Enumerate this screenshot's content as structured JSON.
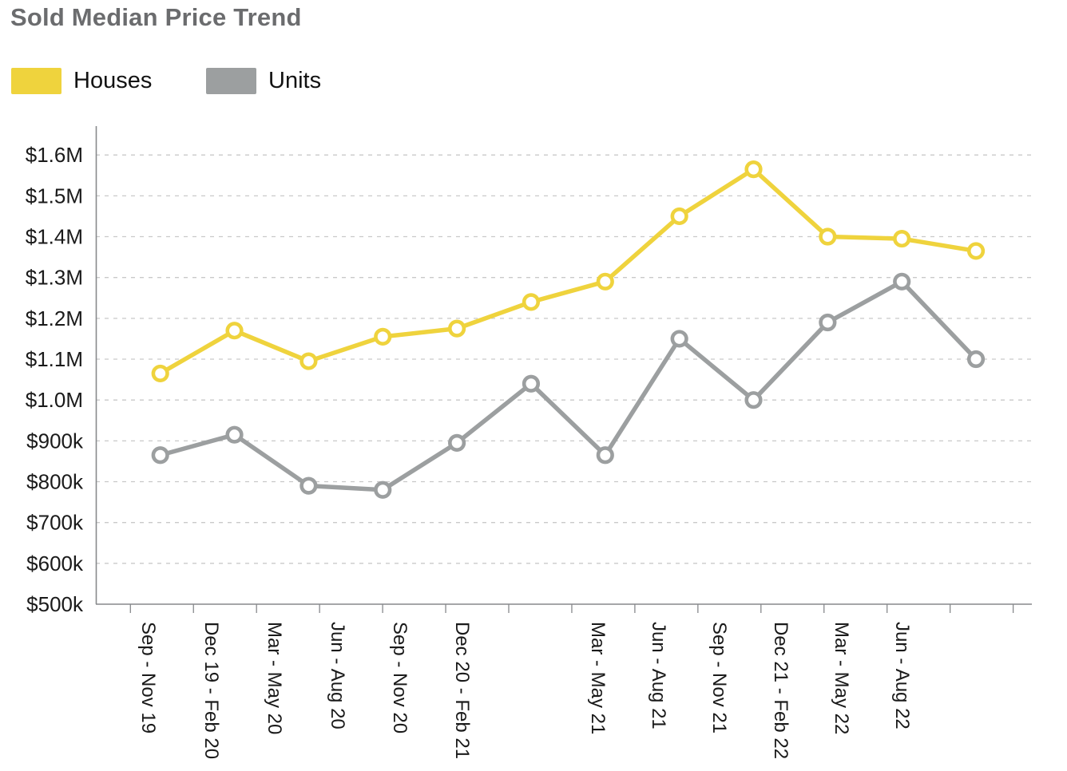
{
  "title": "Sold Median Price Trend",
  "legend": [
    {
      "label": "Houses",
      "color": "#EFD33D"
    },
    {
      "label": "Units",
      "color": "#9C9FA0"
    }
  ],
  "chart_data": {
    "type": "line",
    "title": "Sold Median Price Trend",
    "categories": [
      "Sep - Nov 19",
      "Dec 19 - Feb 20",
      "Mar - May 20",
      "Jun - Aug 20",
      "Sep - Nov 20",
      "Dec 20 - Feb 21",
      "Mar - May 21",
      "Jun - Aug 21",
      "Sep - Nov 21",
      "Dec 21 - Feb 22",
      "Mar - May 22",
      "Jun - Aug 22"
    ],
    "series": [
      {
        "name": "Houses",
        "color": "#EFD33D",
        "values": [
          1.065,
          1.17,
          1.095,
          1.155,
          1.175,
          1.24,
          1.29,
          1.45,
          1.565,
          1.4,
          1.395,
          1.365
        ]
      },
      {
        "name": "Units",
        "color": "#9C9FA0",
        "values": [
          0.865,
          0.915,
          0.79,
          0.78,
          0.895,
          1.04,
          0.865,
          1.15,
          1.0,
          1.19,
          1.29,
          1.1
        ]
      }
    ],
    "unit": "millions USD",
    "y_tick_labels": [
      "$1.6M",
      "$1.5M",
      "$1.4M",
      "$1.3M",
      "$1.2M",
      "$1.1M",
      "$1.0M",
      "$900k",
      "$800k",
      "$700k",
      "$600k",
      "$500k"
    ],
    "y_tick_values": [
      1.6,
      1.5,
      1.4,
      1.3,
      1.2,
      1.1,
      1.0,
      0.9,
      0.8,
      0.7,
      0.6,
      0.5
    ],
    "ylim": [
      0.5,
      1.6
    ],
    "grid": "horizontal-dashed",
    "marker": "open-circle",
    "legend_position": "top-left",
    "x_label_rotation": 90,
    "colors": {
      "grid_line": "#c9c9c9",
      "axis_line": "#87898c",
      "axis_text": "#1a1a1a",
      "title_text": "#6b6c6e"
    }
  }
}
